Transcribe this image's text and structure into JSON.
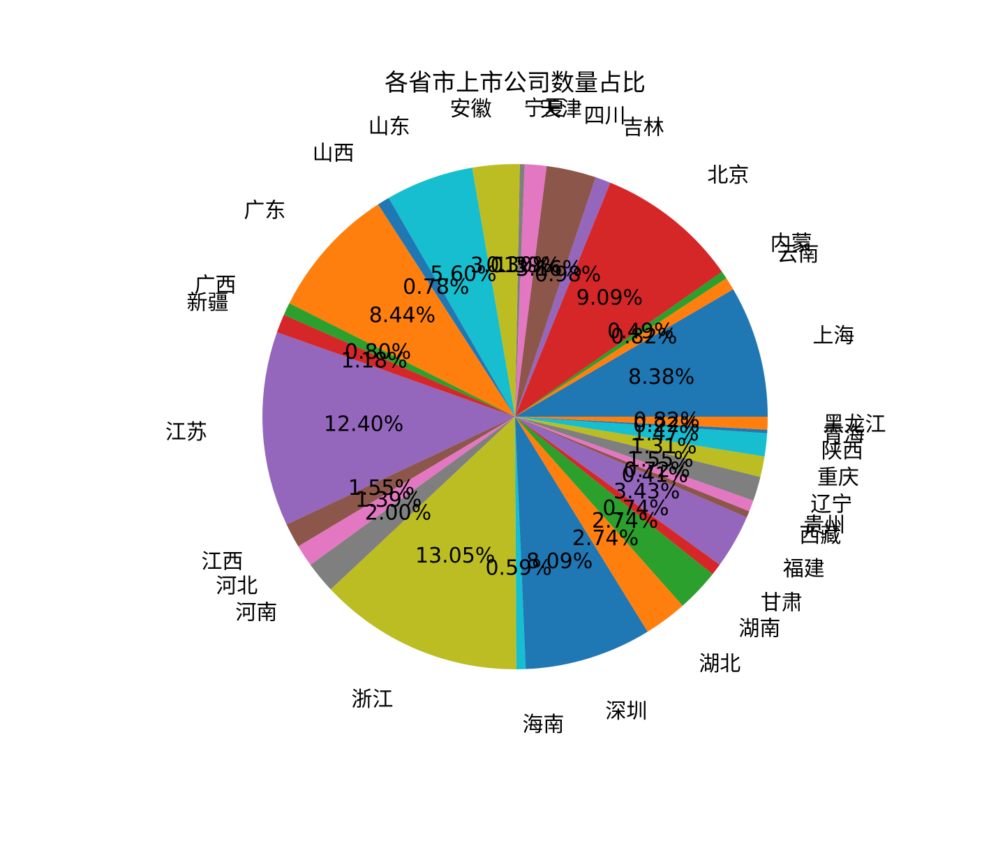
{
  "chart_data": {
    "type": "pie",
    "title": "各省市上市公司数量占比",
    "start_angle_deg": 0,
    "direction": "counterclockwise",
    "slices": [
      {
        "label": "上海",
        "value": 8.38,
        "pct_label": "8.38%",
        "color": "#1f77b4"
      },
      {
        "label": "云南",
        "value": 0.82,
        "pct_label": "0.82%",
        "color": "#ff7f0e"
      },
      {
        "label": "内蒙",
        "value": 0.49,
        "pct_label": "0.49%",
        "color": "#2ca02c"
      },
      {
        "label": "北京",
        "value": 9.09,
        "pct_label": "9.09%",
        "color": "#d62728"
      },
      {
        "label": "吉林",
        "value": 0.98,
        "pct_label": "0.98%",
        "color": "#9467bd"
      },
      {
        "label": "四川",
        "value": 3.16,
        "pct_label": "3.16%",
        "color": "#8c564b"
      },
      {
        "label": "天津",
        "value": 1.39,
        "pct_label": "1.39%",
        "color": "#e377c2"
      },
      {
        "label": "宁夏",
        "value": 0.3,
        "pct_label": "0.30%",
        "color": "#7f7f7f"
      },
      {
        "label": "安徽",
        "value": 3.01,
        "pct_label": "3.01%",
        "color": "#bcbd22"
      },
      {
        "label": "山东",
        "value": 5.6,
        "pct_label": "5.60%",
        "color": "#17becf"
      },
      {
        "label": "山西",
        "value": 0.78,
        "pct_label": "0.78%",
        "color": "#1f77b4"
      },
      {
        "label": "广东",
        "value": 8.44,
        "pct_label": "8.44%",
        "color": "#ff7f0e"
      },
      {
        "label": "广西",
        "value": 0.8,
        "pct_label": "0.80%",
        "color": "#2ca02c"
      },
      {
        "label": "新疆",
        "value": 1.18,
        "pct_label": "1.18%",
        "color": "#d62728"
      },
      {
        "label": "江苏",
        "value": 12.4,
        "pct_label": "12.40%",
        "color": "#9467bd"
      },
      {
        "label": "江西",
        "value": 1.55,
        "pct_label": "1.55%",
        "color": "#8c564b"
      },
      {
        "label": "河北",
        "value": 1.39,
        "pct_label": "1.39%",
        "color": "#e377c2"
      },
      {
        "label": "河南",
        "value": 2.0,
        "pct_label": "2.00%",
        "color": "#7f7f7f"
      },
      {
        "label": "浙江",
        "value": 13.05,
        "pct_label": "13.05%",
        "color": "#bcbd22"
      },
      {
        "label": "海南",
        "value": 0.59,
        "pct_label": "0.59%",
        "color": "#17becf"
      },
      {
        "label": "深圳",
        "value": 8.09,
        "pct_label": "8.09%",
        "color": "#1f77b4"
      },
      {
        "label": "湖北",
        "value": 2.74,
        "pct_label": "2.74%",
        "color": "#ff7f0e"
      },
      {
        "label": "湖南",
        "value": 2.74,
        "pct_label": "2.74%",
        "color": "#2ca02c"
      },
      {
        "label": "甘肃",
        "value": 0.74,
        "pct_label": "0.74%",
        "color": "#d62728"
      },
      {
        "label": "福建",
        "value": 3.43,
        "pct_label": "3.43%",
        "color": "#9467bd"
      },
      {
        "label": "西藏",
        "value": 0.41,
        "pct_label": "0.41%",
        "color": "#8c564b"
      },
      {
        "label": "贵州",
        "value": 0.72,
        "pct_label": "0.72%",
        "color": "#e377c2"
      },
      {
        "label": "辽宁",
        "value": 1.55,
        "pct_label": "1.55%",
        "color": "#7f7f7f"
      },
      {
        "label": "重庆",
        "value": 1.31,
        "pct_label": "1.31%",
        "color": "#bcbd22"
      },
      {
        "label": "陕西",
        "value": 1.47,
        "pct_label": "1.47%",
        "color": "#17becf"
      },
      {
        "label": "青海",
        "value": 0.22,
        "pct_label": "0.22%",
        "color": "#1f77b4"
      },
      {
        "label": "黑龙江",
        "value": 0.82,
        "pct_label": "0.82%",
        "color": "#ff7f0e"
      }
    ]
  }
}
